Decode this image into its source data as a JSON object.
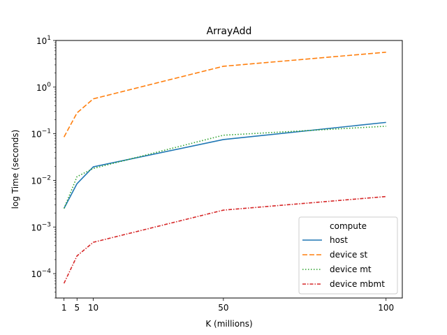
{
  "chart_data": {
    "type": "line",
    "title": "ArrayAdd",
    "xlabel": "K (millions)",
    "ylabel": "log Time (seconds)",
    "x": [
      1,
      5,
      10,
      50,
      100
    ],
    "xticks": [
      1,
      5,
      10,
      50,
      100
    ],
    "xlim": [
      -1.5,
      105
    ],
    "yscale": "log",
    "ylim": [
      3e-05,
      10
    ],
    "yticks": [
      {
        "value": 0.0001,
        "base": "10",
        "exp": "−4"
      },
      {
        "value": 0.001,
        "base": "10",
        "exp": "−3"
      },
      {
        "value": 0.01,
        "base": "10",
        "exp": "−2"
      },
      {
        "value": 0.1,
        "base": "10",
        "exp": "−1"
      },
      {
        "value": 1,
        "base": "10",
        "exp": "0"
      },
      {
        "value": 10,
        "base": "10",
        "exp": "1"
      }
    ],
    "grid": false,
    "legend": {
      "title": "compute",
      "placement": "lower-right"
    },
    "series": [
      {
        "name": "host",
        "color": "#1f77b4",
        "style": "solid",
        "values": [
          0.0025,
          0.0085,
          0.0195,
          0.075,
          0.175
        ]
      },
      {
        "name": "device st",
        "color": "#ff7f0e",
        "style": "dashed",
        "values": [
          0.085,
          0.28,
          0.56,
          2.8,
          5.6
        ]
      },
      {
        "name": "device mt",
        "color": "#2ca02c",
        "style": "dotted",
        "values": [
          0.0025,
          0.012,
          0.018,
          0.093,
          0.145
        ]
      },
      {
        "name": "device mbmt",
        "color": "#d62728",
        "style": "dashdot",
        "values": [
          6.2e-05,
          0.00024,
          0.00047,
          0.0023,
          0.0045
        ]
      }
    ]
  }
}
